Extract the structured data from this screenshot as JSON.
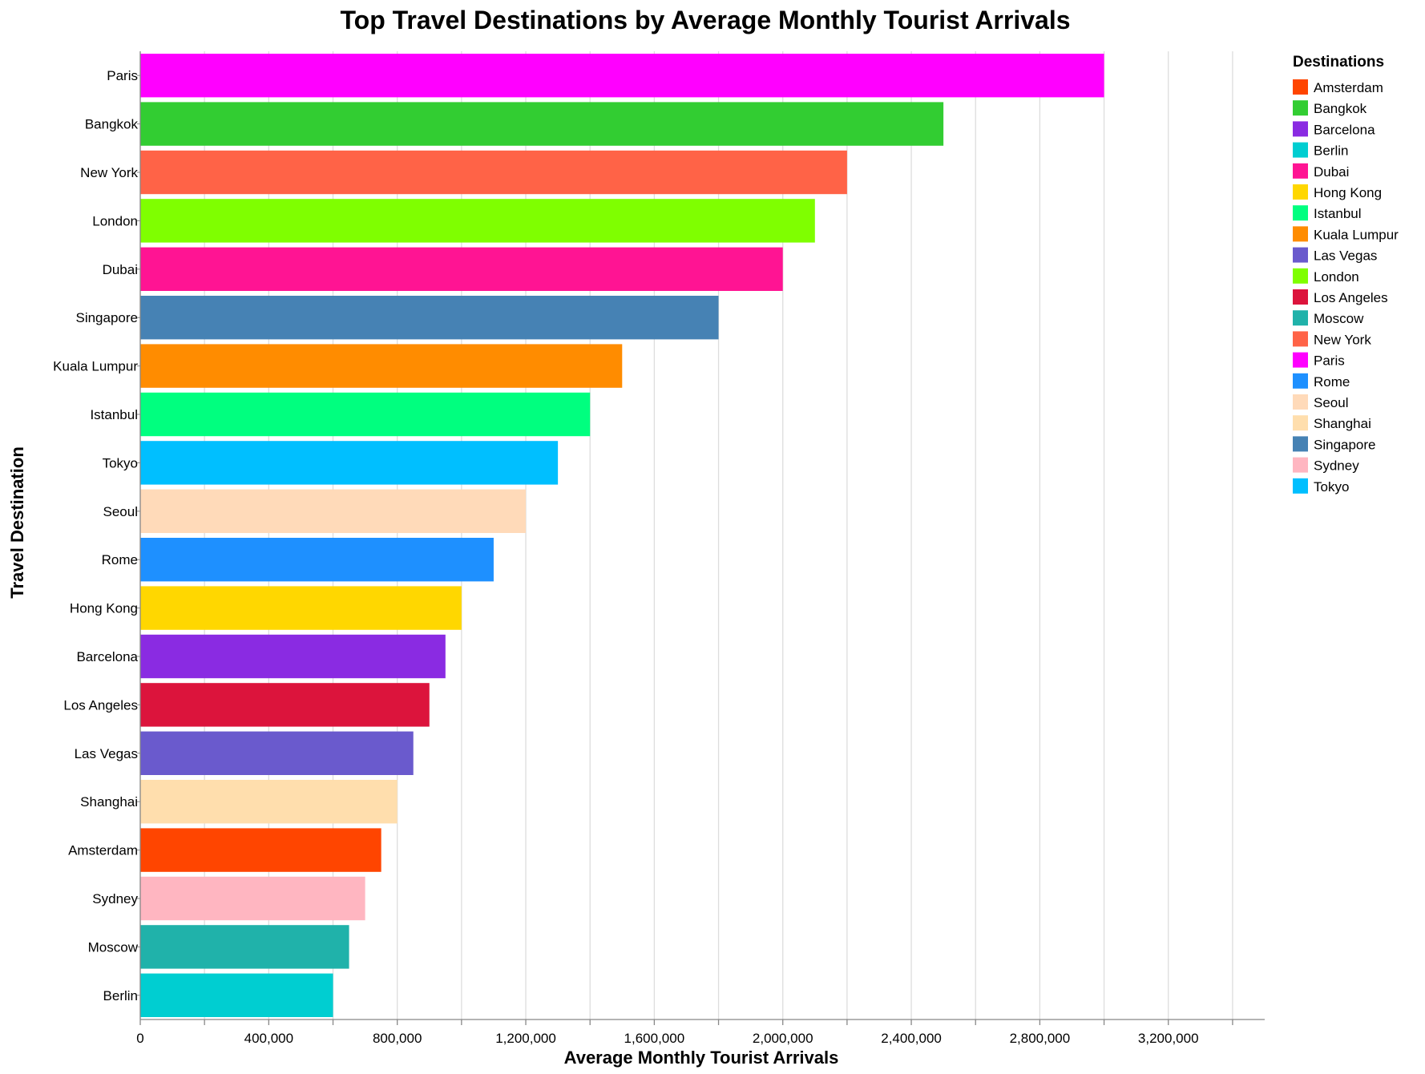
{
  "chart_data": {
    "type": "bar",
    "orientation": "horizontal",
    "title": "Top Travel Destinations by Average Monthly Tourist Arrivals",
    "xlabel": "Average Monthly Tourist Arrivals",
    "ylabel": "Travel Destination",
    "xlim": [
      0,
      3500000
    ],
    "x_ticks": [
      0,
      400000,
      800000,
      1200000,
      1600000,
      2000000,
      2400000,
      2800000,
      3200000
    ],
    "grid": true,
    "legend": {
      "title": "Destinations",
      "placement": "right"
    },
    "categories": [
      "Paris",
      "Bangkok",
      "New York",
      "London",
      "Dubai",
      "Singapore",
      "Kuala Lumpur",
      "Istanbul",
      "Tokyo",
      "Seoul",
      "Rome",
      "Hong Kong",
      "Barcelona",
      "Los Angeles",
      "Las Vegas",
      "Shanghai",
      "Amsterdam",
      "Sydney",
      "Moscow",
      "Berlin"
    ],
    "values": [
      3000000,
      2500000,
      2200000,
      2100000,
      2000000,
      1800000,
      1500000,
      1400000,
      1300000,
      1200000,
      1100000,
      1000000,
      950000,
      900000,
      850000,
      800000,
      750000,
      700000,
      650000,
      600000
    ],
    "colors": {
      "Amsterdam": "#ff4500",
      "Bangkok": "#32cd32",
      "Barcelona": "#8a2be2",
      "Berlin": "#00ced1",
      "Dubai": "#ff1493",
      "Hong Kong": "#ffd700",
      "Istanbul": "#00ff7f",
      "Kuala Lumpur": "#ff8c00",
      "Las Vegas": "#6a5acd",
      "London": "#7fff00",
      "Los Angeles": "#dc143c",
      "Moscow": "#20b2aa",
      "New York": "#ff6347",
      "Paris": "#ff00ff",
      "Rome": "#1e90ff",
      "Seoul": "#ffdab9",
      "Shanghai": "#ffdead",
      "Singapore": "#4682b4",
      "Sydney": "#ffb6c1",
      "Tokyo": "#00bfff"
    },
    "legend_order": [
      "Amsterdam",
      "Bangkok",
      "Barcelona",
      "Berlin",
      "Dubai",
      "Hong Kong",
      "Istanbul",
      "Kuala Lumpur",
      "Las Vegas",
      "London",
      "Los Angeles",
      "Moscow",
      "New York",
      "Paris",
      "Rome",
      "Seoul",
      "Shanghai",
      "Singapore",
      "Sydney",
      "Tokyo"
    ]
  }
}
